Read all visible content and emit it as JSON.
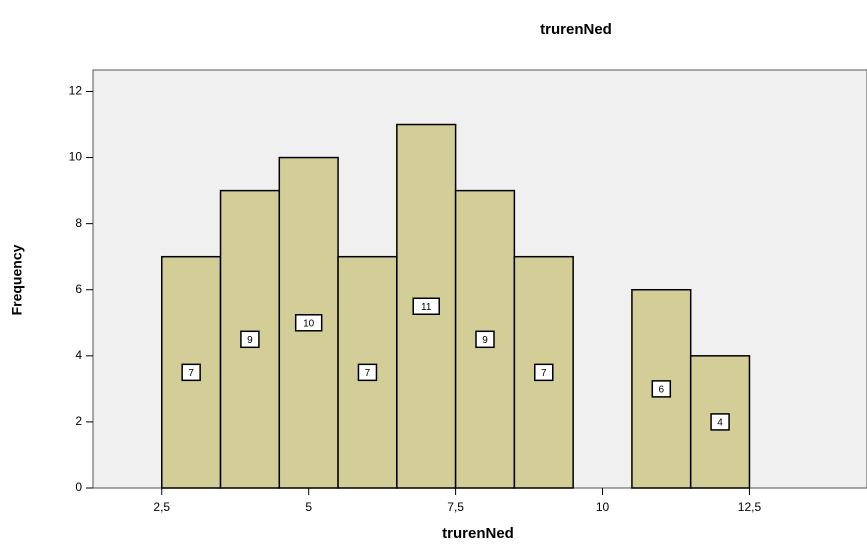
{
  "chart_data": {
    "type": "histogram",
    "title": "trurenNed",
    "x_label": "trurenNed",
    "y_label": "Frequency",
    "bins": [
      2.5,
      3.5,
      4.5,
      5.5,
      6.5,
      7.5,
      8.5,
      9.5,
      10.5,
      11.5,
      12.5
    ],
    "values": [
      7,
      9,
      10,
      7,
      11,
      9,
      7,
      0,
      6,
      4
    ],
    "color": "#d3ce97",
    "xlim": [
      1.33,
      14.5
    ],
    "xticks": [
      {
        "value": 2.5,
        "label": "2,5"
      },
      5,
      {
        "value": 7.5,
        "label": "7,5"
      },
      10,
      {
        "value": 12.5,
        "label": "12,5"
      }
    ],
    "ylim": [
      0,
      12.65
    ],
    "yticks": [
      0,
      2,
      4,
      6,
      8,
      10,
      12
    ],
    "grid": false
  }
}
